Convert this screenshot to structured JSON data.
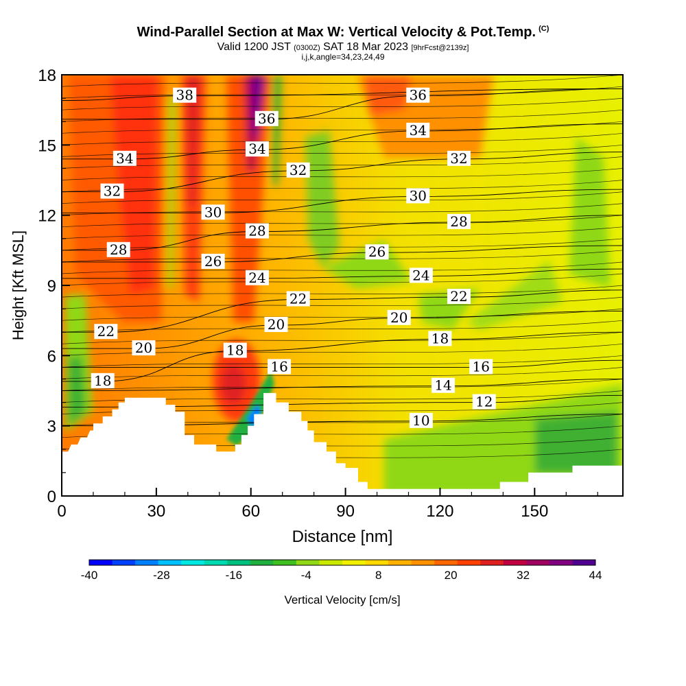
{
  "title": {
    "main": "Wind-Parallel Section at Max W: Vertical Velocity & Pot.Temp.",
    "copyright": "(C)",
    "valid_prefix": "Valid 1200 JST",
    "valid_z": "(0300Z)",
    "valid_date": "SAT 18 Mar 2023",
    "valid_fcst": "[9hrFcst@2139z]",
    "indices": "i,j,k,angle=34,23,24,49"
  },
  "chart_data": {
    "type": "heatmap",
    "xlabel": "Distance [nm]",
    "ylabel": "Height [Kft MSL]",
    "xlim": [
      0,
      178
    ],
    "ylim": [
      0,
      18
    ],
    "x_ticks": [
      "0",
      "30",
      "60",
      "90",
      "120",
      "150"
    ],
    "y_ticks": [
      "0",
      "3",
      "6",
      "9",
      "12",
      "15",
      "18"
    ],
    "colorbar": {
      "label": "Vertical Velocity [cm/s]",
      "tick_labels": [
        "-40",
        "-28",
        "-16",
        "-4",
        "8",
        "20",
        "32",
        "44"
      ],
      "range": [
        -40,
        44
      ],
      "colors": [
        "#0000ff",
        "#0040ff",
        "#0080ff",
        "#00c0ff",
        "#00e8e0",
        "#00d8b0",
        "#00c080",
        "#20b040",
        "#40c020",
        "#90d818",
        "#c8e800",
        "#f0f000",
        "#ffd800",
        "#ffb000",
        "#ff9000",
        "#ff6800",
        "#ff4000",
        "#e02020",
        "#c00040",
        "#a00060",
        "#800080",
        "#500090"
      ]
    },
    "terrain_kft": [
      [
        0,
        1.9
      ],
      [
        2,
        1.9
      ],
      [
        3,
        2.2
      ],
      [
        5,
        2.2
      ],
      [
        6,
        2.5
      ],
      [
        8,
        2.5
      ],
      [
        9,
        2.8
      ],
      [
        10,
        2.8
      ],
      [
        10,
        3.1
      ],
      [
        13,
        3.1
      ],
      [
        13,
        3.4
      ],
      [
        16,
        3.4
      ],
      [
        16,
        3.7
      ],
      [
        18,
        3.7
      ],
      [
        18,
        4.0
      ],
      [
        20,
        4.0
      ],
      [
        20,
        4.2
      ],
      [
        33,
        4.2
      ],
      [
        33,
        3.9
      ],
      [
        36,
        3.9
      ],
      [
        36,
        3.6
      ],
      [
        39,
        3.6
      ],
      [
        39,
        2.6
      ],
      [
        42,
        2.6
      ],
      [
        42,
        2.2
      ],
      [
        49,
        2.2
      ],
      [
        49,
        1.9
      ],
      [
        55,
        1.9
      ],
      [
        55,
        2.2
      ],
      [
        57,
        2.2
      ],
      [
        57,
        2.6
      ],
      [
        59,
        2.6
      ],
      [
        59,
        3.0
      ],
      [
        61,
        3.0
      ],
      [
        61,
        3.5
      ],
      [
        64,
        3.5
      ],
      [
        64,
        4.4
      ],
      [
        68,
        4.4
      ],
      [
        68,
        4.0
      ],
      [
        72,
        4.0
      ],
      [
        72,
        3.6
      ],
      [
        76,
        3.6
      ],
      [
        76,
        3.2
      ],
      [
        78,
        3.2
      ],
      [
        78,
        2.8
      ],
      [
        80,
        2.8
      ],
      [
        80,
        2.3
      ],
      [
        84,
        2.3
      ],
      [
        84,
        1.9
      ],
      [
        87,
        1.9
      ],
      [
        87,
        1.4
      ],
      [
        90,
        1.4
      ],
      [
        90,
        1.2
      ],
      [
        94,
        1.2
      ],
      [
        94,
        0.6
      ],
      [
        97,
        0.6
      ],
      [
        97,
        0.3
      ],
      [
        139,
        0.3
      ],
      [
        139,
        0.6
      ],
      [
        148,
        0.6
      ],
      [
        148,
        1.0
      ],
      [
        162,
        1.0
      ],
      [
        162,
        1.3
      ],
      [
        178,
        1.3
      ]
    ],
    "theta_contours": [
      {
        "value": 10,
        "label_x": 114,
        "label_y": 3.2
      },
      {
        "value": 12,
        "label_x": 134,
        "label_y": 4.0
      },
      {
        "value": 14,
        "label_x": 121,
        "label_y": 4.7
      },
      {
        "value": 16,
        "label_x": 69,
        "label_y": 5.5
      },
      {
        "value": 18,
        "label_x": 55,
        "label_y": 6.2
      },
      {
        "value": 18,
        "label_x": 13,
        "label_y": 4.9
      },
      {
        "value": 18,
        "label_x": 120,
        "label_y": 6.7
      },
      {
        "value": 16,
        "label_x": 133,
        "label_y": 5.5
      },
      {
        "value": 20,
        "label_x": 26,
        "label_y": 6.3
      },
      {
        "value": 20,
        "label_x": 68,
        "label_y": 7.3
      },
      {
        "value": 20,
        "label_x": 107,
        "label_y": 7.6
      },
      {
        "value": 22,
        "label_x": 14,
        "label_y": 7.0
      },
      {
        "value": 22,
        "label_x": 75,
        "label_y": 8.4
      },
      {
        "value": 22,
        "label_x": 126,
        "label_y": 8.5
      },
      {
        "value": 24,
        "label_x": 62,
        "label_y": 9.3
      },
      {
        "value": 24,
        "label_x": 114,
        "label_y": 9.4
      },
      {
        "value": 26,
        "label_x": 48,
        "label_y": 10.0
      },
      {
        "value": 26,
        "label_x": 100,
        "label_y": 10.4
      },
      {
        "value": 28,
        "label_x": 18,
        "label_y": 10.5
      },
      {
        "value": 28,
        "label_x": 62,
        "label_y": 11.3
      },
      {
        "value": 28,
        "label_x": 126,
        "label_y": 11.7
      },
      {
        "value": 30,
        "label_x": 48,
        "label_y": 12.1
      },
      {
        "value": 30,
        "label_x": 113,
        "label_y": 12.8
      },
      {
        "value": 32,
        "label_x": 16,
        "label_y": 13.0
      },
      {
        "value": 32,
        "label_x": 75,
        "label_y": 13.9
      },
      {
        "value": 32,
        "label_x": 126,
        "label_y": 14.4
      },
      {
        "value": 34,
        "label_x": 20,
        "label_y": 14.4
      },
      {
        "value": 34,
        "label_x": 62,
        "label_y": 14.8
      },
      {
        "value": 34,
        "label_x": 113,
        "label_y": 15.6
      },
      {
        "value": 36,
        "label_x": 65,
        "label_y": 16.1
      },
      {
        "value": 36,
        "label_x": 113,
        "label_y": 17.1
      },
      {
        "value": 38,
        "label_x": 39,
        "label_y": 17.1
      }
    ]
  }
}
